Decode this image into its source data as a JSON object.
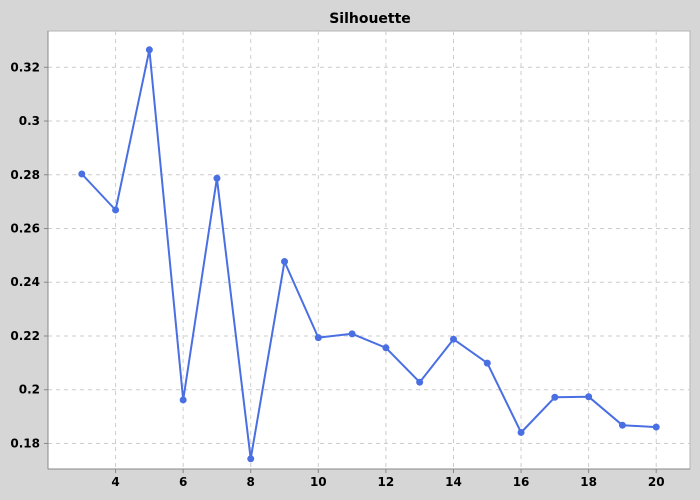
{
  "chart_data": {
    "type": "line",
    "title": "Silhouette",
    "xlabel": "",
    "ylabel": "",
    "x": [
      3,
      4,
      5,
      6,
      7,
      8,
      9,
      10,
      11,
      12,
      13,
      14,
      15,
      16,
      17,
      18,
      19,
      20
    ],
    "series": [
      {
        "values": [
          0.2803,
          0.2669,
          0.3265,
          0.1962,
          0.2787,
          0.1743,
          0.2477,
          0.2194,
          0.2208,
          0.2156,
          0.2028,
          0.2188,
          0.2099,
          0.1841,
          0.1972,
          0.1974,
          0.1868,
          0.1861
        ],
        "color": "#4a6fe3"
      }
    ],
    "xlim": [
      2.0,
      21.0
    ],
    "ylim": [
      0.1705,
      0.3335
    ],
    "xticks": [
      "4",
      "6",
      "8",
      "10",
      "12",
      "14",
      "16",
      "18",
      "20"
    ],
    "xtick_values": [
      4,
      6,
      8,
      10,
      12,
      14,
      16,
      18,
      20
    ],
    "yticks": [
      "0.18",
      "0.2",
      "0.22",
      "0.24",
      "0.26",
      "0.28",
      "0.3",
      "0.32"
    ],
    "ytick_values": [
      0.18,
      0.2,
      0.22,
      0.24,
      0.26,
      0.28,
      0.3,
      0.32
    ],
    "grid": true,
    "background": "#ffffff",
    "outer_background": "#d6d6d6",
    "grid_color": "#cccccc"
  }
}
